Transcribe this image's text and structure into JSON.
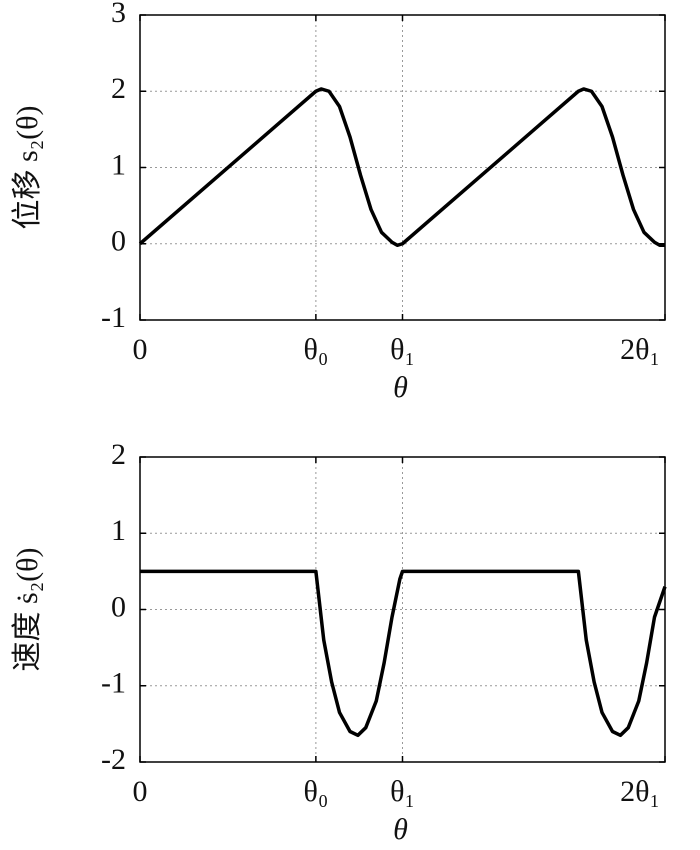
{
  "chart_data": [
    {
      "type": "line",
      "ylabel": "位移 s₂(θ)",
      "xlabel": "θ",
      "xlim": [
        0,
        2
      ],
      "xticks": [
        0,
        {
          "value": 0.67,
          "label": "θ₀"
        },
        {
          "value": 1,
          "label": "θ₁"
        },
        {
          "value": 2,
          "label": "2θ₁"
        }
      ],
      "ylim": [
        -1,
        3
      ],
      "yticks": [
        -1,
        0,
        1,
        2,
        3
      ],
      "grid": true,
      "color": "#000000",
      "x": [
        0,
        0.67,
        0.69,
        0.72,
        0.76,
        0.8,
        0.84,
        0.88,
        0.92,
        0.96,
        0.98,
        1.0,
        1.67,
        1.69,
        1.72,
        1.76,
        1.8,
        1.84,
        1.88,
        1.92,
        1.96,
        1.98,
        2.0
      ],
      "values": [
        0,
        2,
        2.03,
        2.0,
        1.8,
        1.4,
        0.9,
        0.45,
        0.15,
        0.02,
        -0.02,
        0,
        2,
        2.03,
        2.0,
        1.8,
        1.4,
        0.9,
        0.45,
        0.15,
        0.02,
        -0.02,
        -0.02
      ]
    },
    {
      "type": "line",
      "ylabel": "速度 ṡ₂(θ)",
      "xlabel": "θ",
      "xlim": [
        0,
        2
      ],
      "xticks": [
        0,
        {
          "value": 0.67,
          "label": "θ₀"
        },
        {
          "value": 1,
          "label": "θ₁"
        },
        {
          "value": 2,
          "label": "2θ₁"
        }
      ],
      "ylim": [
        -2,
        2
      ],
      "yticks": [
        -2,
        -1,
        0,
        1,
        2
      ],
      "grid": true,
      "color": "#000000",
      "x": [
        0,
        0.67,
        0.68,
        0.7,
        0.73,
        0.76,
        0.8,
        0.83,
        0.86,
        0.9,
        0.93,
        0.96,
        0.99,
        1.0,
        1.67,
        1.68,
        1.7,
        1.73,
        1.76,
        1.8,
        1.83,
        1.86,
        1.9,
        1.93,
        1.96,
        2.0
      ],
      "values": [
        0.5,
        0.5,
        0.2,
        -0.4,
        -0.95,
        -1.35,
        -1.6,
        -1.65,
        -1.55,
        -1.2,
        -0.7,
        -0.1,
        0.4,
        0.5,
        0.5,
        0.2,
        -0.4,
        -0.95,
        -1.35,
        -1.6,
        -1.65,
        -1.55,
        -1.2,
        -0.7,
        -0.1,
        0.3
      ]
    }
  ]
}
